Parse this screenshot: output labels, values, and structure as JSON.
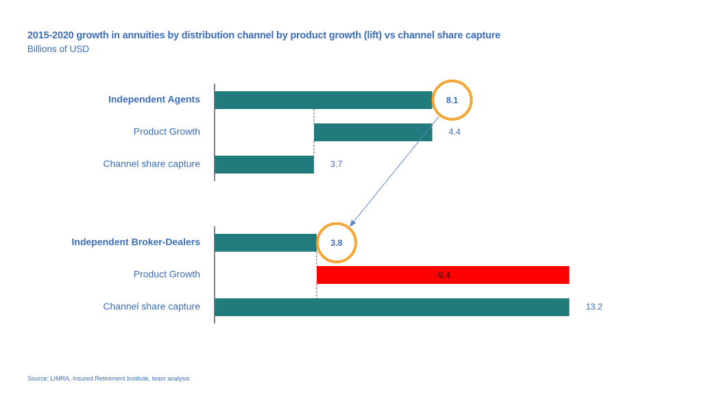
{
  "header": {
    "title": "2015-2020 growth in annuities by distribution channel by product growth (lift) vs channel share capture",
    "subtitle": "Billions of USD"
  },
  "footer": {
    "source": "Source: LIMRA, Insured Retirement Institute, team analysis"
  },
  "colors": {
    "bar": "#217a7b",
    "negative_bar": "#ff0000",
    "highlight_circle": "#f39c1f",
    "arrow": "#5b86c9",
    "text": "#3b6cb7"
  },
  "chart_data": {
    "type": "bar",
    "orientation": "horizontal",
    "style": "waterfall",
    "xlim": [
      0,
      14
    ],
    "groups": [
      {
        "name": "Independent Agents",
        "total": 8.1,
        "total_label": "8.1",
        "components": [
          {
            "name": "Product Growth",
            "value": 4.4,
            "label": "4.4"
          },
          {
            "name": "Channel share capture",
            "value": 3.7,
            "label": "3.7"
          }
        ]
      },
      {
        "name": "Independent Broker-Dealers",
        "total": 3.8,
        "total_label": "3.8",
        "components": [
          {
            "name": "Product Growth",
            "value": -9.4,
            "label": "-9.4"
          },
          {
            "name": "Channel share capture",
            "value": 13.2,
            "label": "13.2"
          }
        ]
      }
    ],
    "annotations": [
      {
        "type": "circle",
        "target": "Independent Agents total"
      },
      {
        "type": "circle",
        "target": "Independent Broker-Dealers total"
      },
      {
        "type": "arrow",
        "from": "Independent Agents total",
        "to": "Independent Broker-Dealers total"
      }
    ]
  }
}
